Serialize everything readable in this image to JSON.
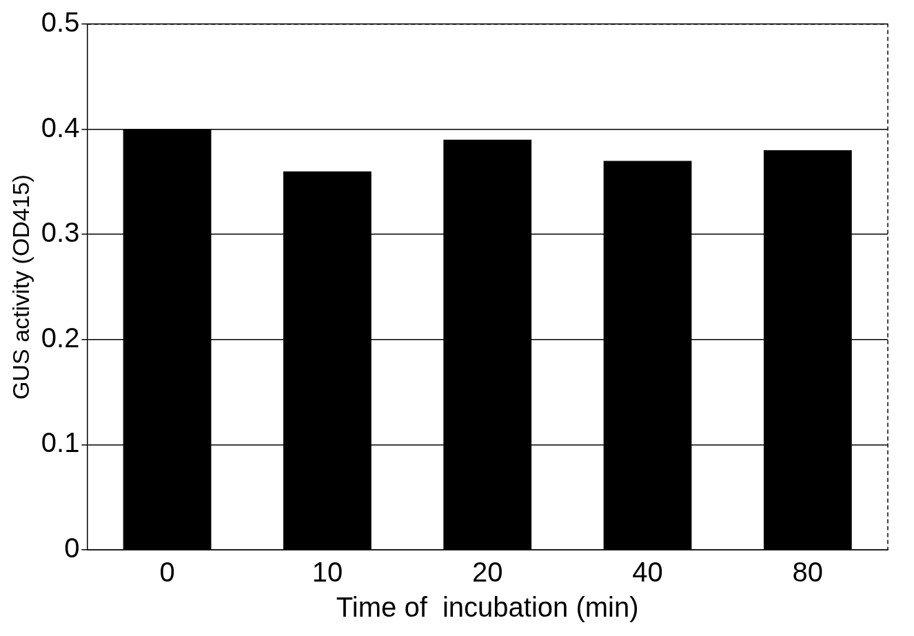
{
  "chart_data": {
    "type": "bar",
    "xlabel": "Time of  incubation (min)",
    "ylabel": "GUS activity (OD415)",
    "categories": [
      "0",
      "10",
      "20",
      "40",
      "80"
    ],
    "values": [
      0.4,
      0.36,
      0.39,
      0.37,
      0.38
    ],
    "color": "#000000",
    "ylim": [
      0,
      0.5
    ],
    "yticks": [
      0,
      0.1,
      0.2,
      0.3,
      0.4,
      0.5
    ],
    "grid": "y",
    "legend": false
  }
}
